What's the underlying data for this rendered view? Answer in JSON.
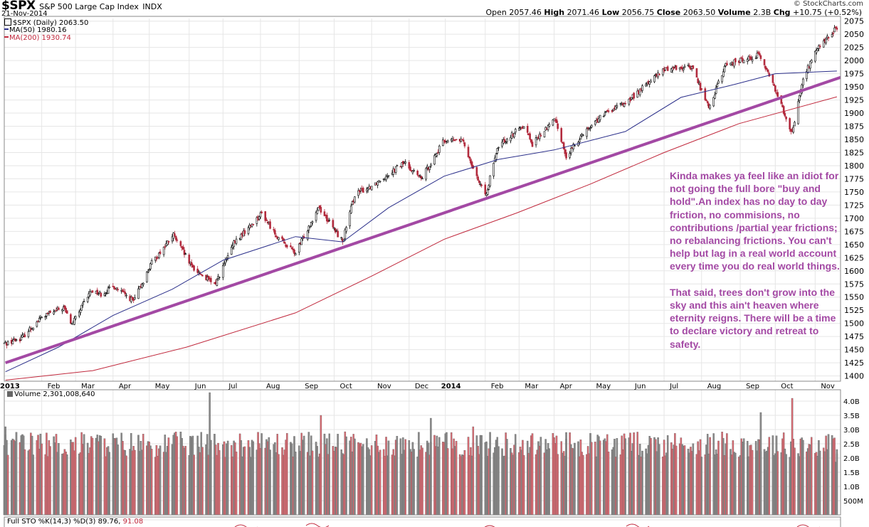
{
  "header": {
    "symbol": "$SPX",
    "name": "S&P 500 Large Cap Index",
    "exchange": "INDX",
    "date": "21-Nov-2014",
    "brand": "© StockCharts.com",
    "quote": {
      "open_label": "Open",
      "open": "2057.46",
      "high_label": "High",
      "high": "2071.46",
      "low_label": "Low",
      "low": "2056.75",
      "close_label": "Close",
      "close": "2063.50",
      "volume_label": "Volume",
      "volume": "2.3B",
      "chg_label": "Chg",
      "chg": "+10.75 (+0.52%)"
    }
  },
  "legend": {
    "price": "$SPX (Daily) 2063.50",
    "ma50": "MA(50) 1980.16",
    "ma200": "MA(200) 1930.74",
    "volume": "Volume 2,301,008,640",
    "sto_prefix": "Full STO %K(14,3) %D(3) 89.76,",
    "sto_d": "91.08"
  },
  "annotation": "Kinda makes ya feel like an idiot for not going the full bore \"buy and hold\".An index has no day to day friction, no commisions, no contributions /partial year frictions; no rebalancing frictions. You can't help but lag in a real world account every time you do real world things.\n\nThat said, trees don't grow into the sky and this ain't heaven where eternity reigns. There will be a time to declare victory and retreat to safety.",
  "colors": {
    "up": "#000000",
    "down": "#b22a3d",
    "ma50": "#2b2f8a",
    "ma200": "#c0283c",
    "trendline": "#a349a4",
    "vol_up": "#8a8a8a",
    "vol_down": "#d96a72",
    "grid": "#e6e6e6"
  },
  "chart_data": [
    {
      "type": "line",
      "title": "$SPX (Daily)",
      "xlabel": "",
      "ylabel": "",
      "grid": true,
      "x_tick_labels": [
        "2013",
        "Feb",
        "Mar",
        "Apr",
        "May",
        "Jun",
        "Jul",
        "Aug",
        "Sep",
        "Oct",
        "Nov",
        "Dec",
        "2014",
        "Feb",
        "Mar",
        "Apr",
        "May",
        "Jun",
        "Jul",
        "Aug",
        "Sep",
        "Oct",
        "Nov"
      ],
      "y_tick_labels": [
        "1400",
        "1425",
        "1450",
        "1475",
        "1500",
        "1525",
        "1550",
        "1575",
        "1600",
        "1625",
        "1650",
        "1675",
        "1700",
        "1725",
        "1750",
        "1775",
        "1800",
        "1825",
        "1850",
        "1875",
        "1900",
        "1925",
        "1950",
        "1975",
        "2000",
        "2025",
        "2050",
        "2075"
      ],
      "ylim": [
        1390,
        2080
      ],
      "xlim": [
        "2013-01-01",
        "2014-11-24"
      ],
      "series": [
        {
          "name": "$SPX",
          "x": [
            "2013-01-02",
            "2013-01-15",
            "2013-02-01",
            "2013-02-19",
            "2013-02-26",
            "2013-03-14",
            "2013-03-22",
            "2013-04-02",
            "2013-04-18",
            "2013-05-03",
            "2013-05-21",
            "2013-06-05",
            "2013-06-24",
            "2013-07-10",
            "2013-08-02",
            "2013-08-15",
            "2013-08-30",
            "2013-09-18",
            "2013-10-08",
            "2013-10-18",
            "2013-11-01",
            "2013-11-28",
            "2013-12-12",
            "2013-12-31",
            "2014-01-15",
            "2014-02-03",
            "2014-02-14",
            "2014-03-07",
            "2014-03-14",
            "2014-04-02",
            "2014-04-11",
            "2014-04-25",
            "2014-05-12",
            "2014-06-02",
            "2014-06-20",
            "2014-07-03",
            "2014-07-24",
            "2014-08-07",
            "2014-08-21",
            "2014-09-18",
            "2014-10-01",
            "2014-10-15",
            "2014-10-24",
            "2014-11-03",
            "2014-11-21"
          ],
          "y": [
            1462,
            1472,
            1512,
            1530,
            1498,
            1563,
            1556,
            1570,
            1542,
            1615,
            1668,
            1608,
            1573,
            1652,
            1709,
            1665,
            1633,
            1722,
            1656,
            1745,
            1762,
            1806,
            1775,
            1848,
            1848,
            1741,
            1838,
            1878,
            1841,
            1890,
            1816,
            1863,
            1897,
            1924,
            1963,
            1985,
            1988,
            1910,
            1992,
            2011,
            1946,
            1862,
            1965,
            2017,
            2063
          ]
        },
        {
          "name": "MA(50)",
          "x": [
            "2013-01-02",
            "2013-02-15",
            "2013-04-01",
            "2013-05-20",
            "2013-07-01",
            "2013-08-30",
            "2013-10-08",
            "2013-11-15",
            "2013-12-31",
            "2014-02-14",
            "2014-04-01",
            "2014-05-30",
            "2014-07-15",
            "2014-08-29",
            "2014-10-01",
            "2014-11-21"
          ],
          "y": [
            1408,
            1455,
            1515,
            1565,
            1620,
            1665,
            1655,
            1720,
            1780,
            1812,
            1830,
            1865,
            1930,
            1955,
            1975,
            1980
          ]
        },
        {
          "name": "MA(200)",
          "x": [
            "2013-01-02",
            "2013-03-15",
            "2013-06-01",
            "2013-08-30",
            "2013-11-01",
            "2013-12-31",
            "2014-03-01",
            "2014-05-01",
            "2014-07-01",
            "2014-09-01",
            "2014-11-21"
          ],
          "y": [
            1392,
            1410,
            1455,
            1520,
            1590,
            1660,
            1710,
            1765,
            1825,
            1880,
            1931
          ]
        },
        {
          "x": [
            "2013-01-02",
            "2014-11-24"
          ],
          "y": [
            1425,
            1968
          ]
        }
      ]
    },
    {
      "type": "bar",
      "title": "Volume",
      "y_tick_labels": [
        "500M",
        "1.0B",
        "1.5B",
        "2.0B",
        "2.5B",
        "3.0B",
        "3.5B",
        "4.0B"
      ],
      "ylim": [
        0,
        4.4
      ],
      "x": [
        "2013-01-02",
        "2013-03-15",
        "2013-06-20",
        "2013-09-20",
        "2013-12-20",
        "2014-01-24",
        "2014-04-11",
        "2014-06-20",
        "2014-09-19",
        "2014-10-15",
        "2014-11-21"
      ],
      "values": [
        3.1,
        2.7,
        4.3,
        3.5,
        3.4,
        3.1,
        2.9,
        2.7,
        3.6,
        4.1,
        2.3
      ]
    }
  ]
}
